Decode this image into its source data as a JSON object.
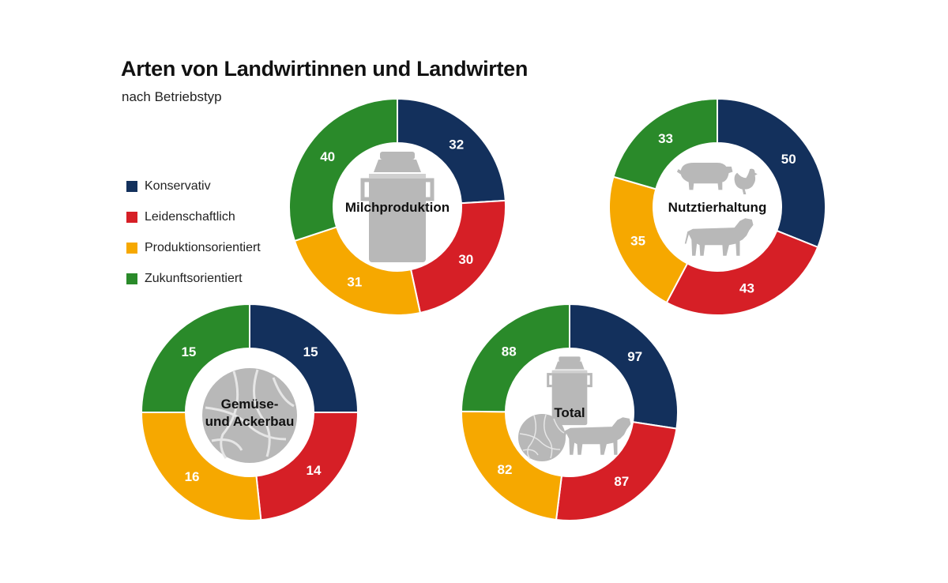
{
  "title": "Arten von Landwirtinnen und Landwirten",
  "subtitle": "nach Betriebstyp",
  "legend": [
    {
      "label": "Konservativ",
      "color": "#13305c"
    },
    {
      "label": "Leidenschaftlich",
      "color": "#d61f26"
    },
    {
      "label": "Produktionsorientiert",
      "color": "#f6a800"
    },
    {
      "label": "Zukunftsorientiert",
      "color": "#2a8a2a"
    }
  ],
  "chart_data": [
    {
      "type": "pie",
      "title": "Milchproduktion",
      "center_lines": [
        "Milchproduktion"
      ],
      "icons": [
        "milk-can-icon"
      ],
      "categories": [
        "Konservativ",
        "Leidenschaftlich",
        "Produktionsorientiert",
        "Zukunftsorientiert"
      ],
      "values": [
        32,
        30,
        31,
        40
      ]
    },
    {
      "type": "pie",
      "title": "Nutztierhaltung",
      "center_lines": [
        "Nutztierhaltung"
      ],
      "icons": [
        "pig-icon",
        "chicken-icon",
        "cow-icon"
      ],
      "categories": [
        "Konservativ",
        "Leidenschaftlich",
        "Produktionsorientiert",
        "Zukunftsorientiert"
      ],
      "values": [
        50,
        43,
        35,
        33
      ]
    },
    {
      "type": "pie",
      "title": "Gemüse- und Ackerbau",
      "center_lines": [
        "Gemüse-",
        "und Ackerbau"
      ],
      "icons": [
        "cabbage-icon"
      ],
      "categories": [
        "Konservativ",
        "Leidenschaftlich",
        "Produktionsorientiert",
        "Zukunftsorientiert"
      ],
      "values": [
        15,
        14,
        16,
        15
      ]
    },
    {
      "type": "pie",
      "title": "Total",
      "center_lines": [
        "Total"
      ],
      "icons": [
        "milk-can-icon",
        "cabbage-icon",
        "cow-icon"
      ],
      "categories": [
        "Konservativ",
        "Leidenschaftlich",
        "Produktionsorientiert",
        "Zukunftsorientiert"
      ],
      "values": [
        97,
        87,
        82,
        88
      ]
    }
  ]
}
